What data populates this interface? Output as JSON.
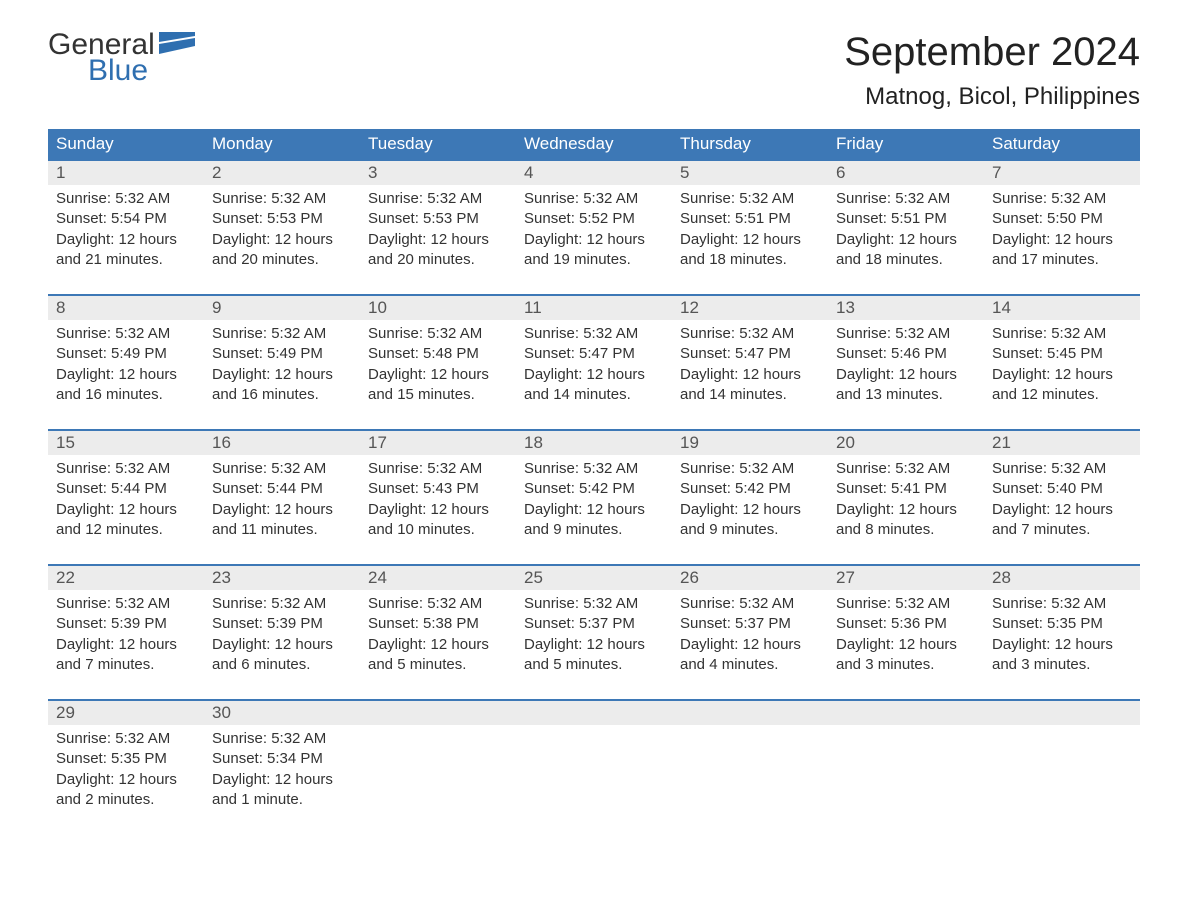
{
  "brand": {
    "word_general": "General",
    "word_blue": "Blue",
    "flag_color": "#2f6fb0"
  },
  "header": {
    "month_title": "September 2024",
    "location": "Matnog, Bicol, Philippines"
  },
  "colors": {
    "header_bar": "#3d78b6",
    "daynum_band": "#ececec",
    "text": "#333333",
    "title_text": "#222222",
    "background": "#ffffff"
  },
  "typography": {
    "month_title_fontsize": 40,
    "location_fontsize": 24,
    "dayheader_fontsize": 17,
    "daynum_fontsize": 17,
    "body_fontsize": 15
  },
  "day_labels": [
    "Sunday",
    "Monday",
    "Tuesday",
    "Wednesday",
    "Thursday",
    "Friday",
    "Saturday"
  ],
  "weeks": [
    [
      {
        "day": "1",
        "sunrise": "Sunrise: 5:32 AM",
        "sunset": "Sunset: 5:54 PM",
        "daylight": "Daylight: 12 hours and 21 minutes."
      },
      {
        "day": "2",
        "sunrise": "Sunrise: 5:32 AM",
        "sunset": "Sunset: 5:53 PM",
        "daylight": "Daylight: 12 hours and 20 minutes."
      },
      {
        "day": "3",
        "sunrise": "Sunrise: 5:32 AM",
        "sunset": "Sunset: 5:53 PM",
        "daylight": "Daylight: 12 hours and 20 minutes."
      },
      {
        "day": "4",
        "sunrise": "Sunrise: 5:32 AM",
        "sunset": "Sunset: 5:52 PM",
        "daylight": "Daylight: 12 hours and 19 minutes."
      },
      {
        "day": "5",
        "sunrise": "Sunrise: 5:32 AM",
        "sunset": "Sunset: 5:51 PM",
        "daylight": "Daylight: 12 hours and 18 minutes."
      },
      {
        "day": "6",
        "sunrise": "Sunrise: 5:32 AM",
        "sunset": "Sunset: 5:51 PM",
        "daylight": "Daylight: 12 hours and 18 minutes."
      },
      {
        "day": "7",
        "sunrise": "Sunrise: 5:32 AM",
        "sunset": "Sunset: 5:50 PM",
        "daylight": "Daylight: 12 hours and 17 minutes."
      }
    ],
    [
      {
        "day": "8",
        "sunrise": "Sunrise: 5:32 AM",
        "sunset": "Sunset: 5:49 PM",
        "daylight": "Daylight: 12 hours and 16 minutes."
      },
      {
        "day": "9",
        "sunrise": "Sunrise: 5:32 AM",
        "sunset": "Sunset: 5:49 PM",
        "daylight": "Daylight: 12 hours and 16 minutes."
      },
      {
        "day": "10",
        "sunrise": "Sunrise: 5:32 AM",
        "sunset": "Sunset: 5:48 PM",
        "daylight": "Daylight: 12 hours and 15 minutes."
      },
      {
        "day": "11",
        "sunrise": "Sunrise: 5:32 AM",
        "sunset": "Sunset: 5:47 PM",
        "daylight": "Daylight: 12 hours and 14 minutes."
      },
      {
        "day": "12",
        "sunrise": "Sunrise: 5:32 AM",
        "sunset": "Sunset: 5:47 PM",
        "daylight": "Daylight: 12 hours and 14 minutes."
      },
      {
        "day": "13",
        "sunrise": "Sunrise: 5:32 AM",
        "sunset": "Sunset: 5:46 PM",
        "daylight": "Daylight: 12 hours and 13 minutes."
      },
      {
        "day": "14",
        "sunrise": "Sunrise: 5:32 AM",
        "sunset": "Sunset: 5:45 PM",
        "daylight": "Daylight: 12 hours and 12 minutes."
      }
    ],
    [
      {
        "day": "15",
        "sunrise": "Sunrise: 5:32 AM",
        "sunset": "Sunset: 5:44 PM",
        "daylight": "Daylight: 12 hours and 12 minutes."
      },
      {
        "day": "16",
        "sunrise": "Sunrise: 5:32 AM",
        "sunset": "Sunset: 5:44 PM",
        "daylight": "Daylight: 12 hours and 11 minutes."
      },
      {
        "day": "17",
        "sunrise": "Sunrise: 5:32 AM",
        "sunset": "Sunset: 5:43 PM",
        "daylight": "Daylight: 12 hours and 10 minutes."
      },
      {
        "day": "18",
        "sunrise": "Sunrise: 5:32 AM",
        "sunset": "Sunset: 5:42 PM",
        "daylight": "Daylight: 12 hours and 9 minutes."
      },
      {
        "day": "19",
        "sunrise": "Sunrise: 5:32 AM",
        "sunset": "Sunset: 5:42 PM",
        "daylight": "Daylight: 12 hours and 9 minutes."
      },
      {
        "day": "20",
        "sunrise": "Sunrise: 5:32 AM",
        "sunset": "Sunset: 5:41 PM",
        "daylight": "Daylight: 12 hours and 8 minutes."
      },
      {
        "day": "21",
        "sunrise": "Sunrise: 5:32 AM",
        "sunset": "Sunset: 5:40 PM",
        "daylight": "Daylight: 12 hours and 7 minutes."
      }
    ],
    [
      {
        "day": "22",
        "sunrise": "Sunrise: 5:32 AM",
        "sunset": "Sunset: 5:39 PM",
        "daylight": "Daylight: 12 hours and 7 minutes."
      },
      {
        "day": "23",
        "sunrise": "Sunrise: 5:32 AM",
        "sunset": "Sunset: 5:39 PM",
        "daylight": "Daylight: 12 hours and 6 minutes."
      },
      {
        "day": "24",
        "sunrise": "Sunrise: 5:32 AM",
        "sunset": "Sunset: 5:38 PM",
        "daylight": "Daylight: 12 hours and 5 minutes."
      },
      {
        "day": "25",
        "sunrise": "Sunrise: 5:32 AM",
        "sunset": "Sunset: 5:37 PM",
        "daylight": "Daylight: 12 hours and 5 minutes."
      },
      {
        "day": "26",
        "sunrise": "Sunrise: 5:32 AM",
        "sunset": "Sunset: 5:37 PM",
        "daylight": "Daylight: 12 hours and 4 minutes."
      },
      {
        "day": "27",
        "sunrise": "Sunrise: 5:32 AM",
        "sunset": "Sunset: 5:36 PM",
        "daylight": "Daylight: 12 hours and 3 minutes."
      },
      {
        "day": "28",
        "sunrise": "Sunrise: 5:32 AM",
        "sunset": "Sunset: 5:35 PM",
        "daylight": "Daylight: 12 hours and 3 minutes."
      }
    ],
    [
      {
        "day": "29",
        "sunrise": "Sunrise: 5:32 AM",
        "sunset": "Sunset: 5:35 PM",
        "daylight": "Daylight: 12 hours and 2 minutes."
      },
      {
        "day": "30",
        "sunrise": "Sunrise: 5:32 AM",
        "sunset": "Sunset: 5:34 PM",
        "daylight": "Daylight: 12 hours and 1 minute."
      },
      null,
      null,
      null,
      null,
      null
    ]
  ]
}
